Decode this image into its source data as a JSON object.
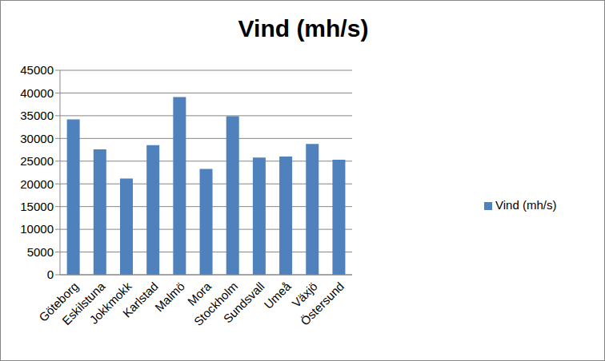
{
  "chart_data": {
    "type": "bar",
    "title": "Vind (mh/s)",
    "categories": [
      "Göteborg",
      "Eskilstuna",
      "Jokkmokk",
      "Karlstad",
      "Malmö",
      "Mora",
      "Stockholm",
      "Sundsvall",
      "Umeå",
      "Växjö",
      "Östersund"
    ],
    "series": [
      {
        "name": "Vind (mh/s)",
        "color": "#4f81bd",
        "values": [
          34200,
          27600,
          21200,
          28500,
          39100,
          23300,
          34900,
          25800,
          26000,
          28800,
          25300
        ]
      }
    ],
    "ylim": [
      0,
      45000
    ],
    "yticks": [
      0,
      5000,
      10000,
      15000,
      20000,
      25000,
      30000,
      35000,
      40000,
      45000
    ],
    "grid": true,
    "legend": "right"
  }
}
